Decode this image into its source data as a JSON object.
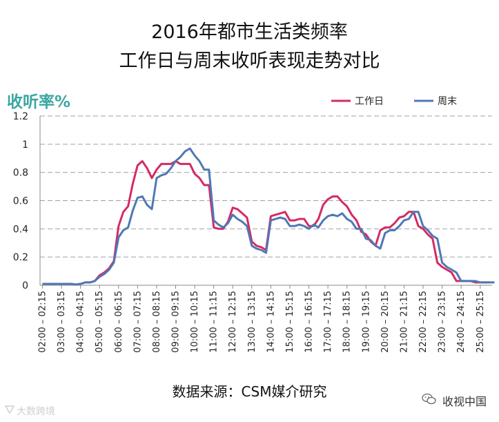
{
  "title_line1": "2016年都市生活类频率",
  "title_line2": "工作日与周末收听表现走势对比",
  "source": "数据来源：CSM媒介研究",
  "watermark_left": "大数跨境",
  "watermark_right": "收视中国",
  "chart_data": {
    "type": "line",
    "ylabel": "收听率%",
    "ylim": [
      0,
      1.2
    ],
    "yticks": [
      "0",
      "0.2",
      "0.4",
      "0.6",
      "0.8",
      "1",
      "1.2"
    ],
    "grid": true,
    "legend_position": "top-right",
    "x_tick_labels": [
      "02:00 – 02:15",
      "03:00 – 03:15",
      "04:00 – 04:15",
      "05:00 – 05:15",
      "06:00 – 06:15",
      "07:00 – 07:15",
      "08:00 – 08:15",
      "09:00 – 09:15",
      "10:00 – 10:15",
      "11:00 – 11:15",
      "12:00 – 12:15",
      "13:00 – 13:15",
      "14:00 – 14:15",
      "15:00 – 15:15",
      "16:00 – 16:15",
      "17:00 – 17:15",
      "18:00 – 18:15",
      "19:00 – 19:15",
      "20:00 – 20:15",
      "21:00 – 21:15",
      "22:00 – 22:15",
      "23:00 – 23:15",
      "24:00 – 24:15",
      "25:00 – 25:15"
    ],
    "series": [
      {
        "name": "工作日",
        "color": "#d42a63",
        "values": [
          0.01,
          0.01,
          0.01,
          0.01,
          0.01,
          0.01,
          0.01,
          0.005,
          0.01,
          0.02,
          0.02,
          0.03,
          0.07,
          0.09,
          0.12,
          0.17,
          0.42,
          0.52,
          0.56,
          0.72,
          0.85,
          0.88,
          0.83,
          0.76,
          0.82,
          0.86,
          0.86,
          0.86,
          0.88,
          0.86,
          0.86,
          0.86,
          0.79,
          0.76,
          0.71,
          0.71,
          0.41,
          0.4,
          0.4,
          0.45,
          0.55,
          0.54,
          0.51,
          0.48,
          0.31,
          0.28,
          0.27,
          0.25,
          0.49,
          0.5,
          0.51,
          0.52,
          0.46,
          0.46,
          0.47,
          0.47,
          0.42,
          0.42,
          0.47,
          0.57,
          0.61,
          0.63,
          0.63,
          0.59,
          0.56,
          0.5,
          0.46,
          0.38,
          0.36,
          0.31,
          0.28,
          0.39,
          0.41,
          0.41,
          0.44,
          0.48,
          0.49,
          0.52,
          0.52,
          0.42,
          0.4,
          0.36,
          0.33,
          0.16,
          0.13,
          0.11,
          0.09,
          0.03,
          0.03,
          0.03,
          0.03,
          0.02,
          0.02,
          0.02,
          0.02
        ]
      },
      {
        "name": "周末",
        "color": "#4f78b4",
        "values": [
          0.01,
          0.01,
          0.01,
          0.01,
          0.01,
          0.01,
          0.01,
          0.005,
          0.01,
          0.02,
          0.02,
          0.03,
          0.06,
          0.08,
          0.11,
          0.16,
          0.34,
          0.39,
          0.41,
          0.53,
          0.62,
          0.63,
          0.57,
          0.54,
          0.76,
          0.78,
          0.79,
          0.83,
          0.88,
          0.91,
          0.95,
          0.97,
          0.92,
          0.88,
          0.82,
          0.82,
          0.46,
          0.43,
          0.41,
          0.44,
          0.5,
          0.47,
          0.45,
          0.42,
          0.28,
          0.26,
          0.25,
          0.23,
          0.46,
          0.47,
          0.48,
          0.47,
          0.42,
          0.42,
          0.43,
          0.42,
          0.4,
          0.43,
          0.41,
          0.46,
          0.49,
          0.5,
          0.49,
          0.51,
          0.47,
          0.45,
          0.4,
          0.4,
          0.33,
          0.32,
          0.28,
          0.26,
          0.37,
          0.39,
          0.39,
          0.42,
          0.46,
          0.47,
          0.52,
          0.52,
          0.42,
          0.39,
          0.35,
          0.33,
          0.16,
          0.13,
          0.11,
          0.09,
          0.03,
          0.03,
          0.03,
          0.03,
          0.02,
          0.02,
          0.02,
          0.02
        ]
      }
    ]
  }
}
